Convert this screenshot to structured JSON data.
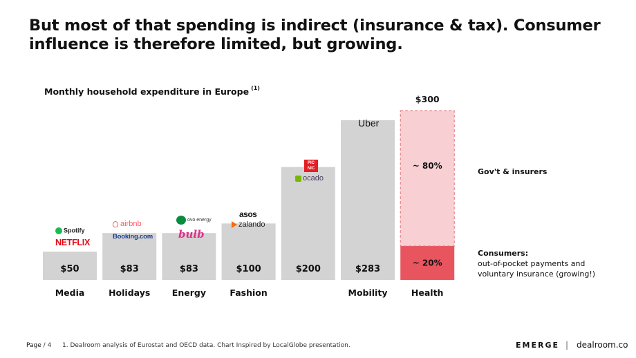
{
  "headline": {
    "line1": "But most of that spending is indirect (insurance & tax). Consumer",
    "line2": "influence is therefore limited, but growing."
  },
  "chart_data": {
    "type": "bar",
    "title": "Monthly household expenditure in Europe",
    "title_note": "(1)",
    "categories": [
      "Media",
      "Holidays",
      "Energy",
      "Fashion",
      "",
      "Mobility",
      "Health"
    ],
    "values": [
      50,
      83,
      83,
      100,
      200,
      283,
      300
    ],
    "value_labels": [
      "$50",
      "$83",
      "$83",
      "$100",
      "$200",
      "$283",
      "$300"
    ],
    "ylim": [
      0,
      300
    ],
    "stacked_bar": {
      "category": "Health",
      "total_label": "$300",
      "segments": [
        {
          "name": "Consumers",
          "share_label": "~ 20%",
          "share": 0.2,
          "color": "#e8555f"
        },
        {
          "name": "Gov't & insurers",
          "share_label": "~ 80%",
          "share": 0.8,
          "color": "#f8cfd3"
        }
      ]
    },
    "colors": {
      "bar": "#d3d3d3",
      "consumers": "#e8555f",
      "insurers": "#f8cfd3",
      "insurers_border": "#e0707a"
    }
  },
  "legend": {
    "govt": "Gov't & insurers",
    "consumers_title": "Consumers:",
    "consumers_line1": "out-of-pocket payments and",
    "consumers_line2": "voluntary insurance (growing!)"
  },
  "logos": {
    "spotify": "Spotify",
    "netflix": "NETFLIX",
    "airbnb": "airbnb",
    "booking": "Booking.com",
    "ovo": "ovo energy",
    "bulb": "bulb",
    "asos": "asos",
    "zalando": "zalando",
    "picnic_top": "PIC",
    "picnic_bottom": "NIC",
    "ocado": "ocado",
    "uber": "Uber"
  },
  "footer": {
    "page": "Page",
    "page_num": "4",
    "note": "1. Dealroom analysis of Eurostat and OECD data. Chart Inspired by LocalGlobe presentation.",
    "brand_emerge": "EMERGE",
    "brand_sep": "|",
    "brand_dealroom": "dealroom.co"
  }
}
